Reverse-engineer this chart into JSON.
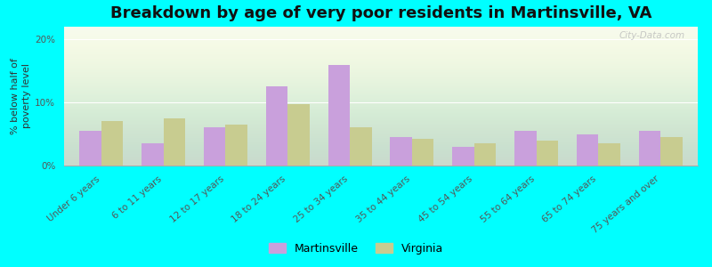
{
  "title": "Breakdown by age of very poor residents in Martinsville, VA",
  "ylabel": "% below half of\npoverty level",
  "categories": [
    "Under 6 years",
    "6 to 11 years",
    "12 to 17 years",
    "18 to 24 years",
    "25 to 34 years",
    "35 to 44 years",
    "45 to 54 years",
    "55 to 64 years",
    "65 to 74 years",
    "75 years and over"
  ],
  "martinsville": [
    5.5,
    3.5,
    6.0,
    12.5,
    16.0,
    4.5,
    3.0,
    5.5,
    5.0,
    5.5
  ],
  "virginia": [
    7.0,
    7.5,
    6.5,
    9.8,
    6.0,
    4.2,
    3.5,
    4.0,
    3.5,
    4.5
  ],
  "martinsville_color": "#c9a0dc",
  "virginia_color": "#c8cc90",
  "bg_outer": "#00ffff",
  "bg_plot_top": "#f5faf0",
  "ylim": [
    0,
    22
  ],
  "yticks": [
    0,
    10,
    20
  ],
  "ytick_labels": [
    "0%",
    "10%",
    "20%"
  ],
  "bar_width": 0.35,
  "title_fontsize": 13,
  "axis_label_fontsize": 8,
  "tick_fontsize": 7.5,
  "legend_fontsize": 9,
  "watermark": "City-Data.com"
}
